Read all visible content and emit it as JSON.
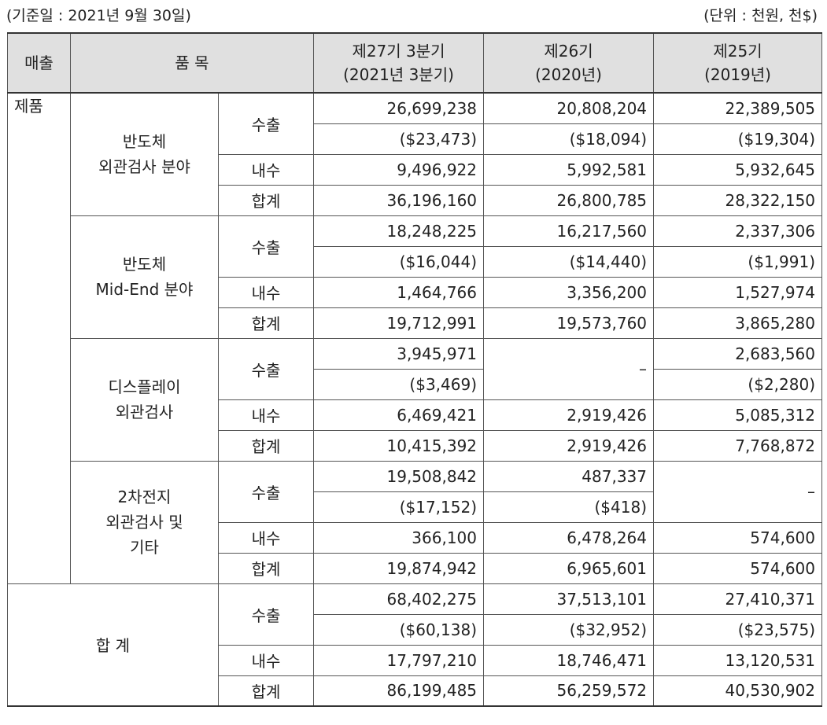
{
  "header": {
    "base_date": "(기준일 : 2021년 9월 30일)",
    "unit": "(단위 : 천원, 천$)"
  },
  "table": {
    "col_sales": "매출",
    "col_item": "품 목",
    "periods": [
      {
        "line1": "제27기 3분기",
        "line2": "(2021년 3분기)"
      },
      {
        "line1": "제26기",
        "line2": "(2020년)"
      },
      {
        "line1": "제25기",
        "line2": "(2019년)"
      }
    ],
    "segment": "제품",
    "kinds": {
      "export": "수출",
      "domestic": "내수",
      "total": "합계"
    },
    "groups": [
      {
        "name1": "반도체",
        "name2": "외관검사 분야",
        "name3": "",
        "export": [
          "26,699,238",
          "20,808,204",
          "22,389,505"
        ],
        "export_usd": [
          "($23,473)",
          "($18,094)",
          "($19,304)"
        ],
        "domestic": [
          "9,496,922",
          "5,992,581",
          "5,932,645"
        ],
        "total": [
          "36,196,160",
          "26,800,785",
          "28,322,150"
        ]
      },
      {
        "name1": "반도체",
        "name2": "Mid-End 분야",
        "name3": "",
        "export": [
          "18,248,225",
          "16,217,560",
          "2,337,306"
        ],
        "export_usd": [
          "($16,044)",
          "($14,440)",
          "($1,991)"
        ],
        "domestic": [
          "1,464,766",
          "3,356,200",
          "1,527,974"
        ],
        "total": [
          "19,712,991",
          "19,573,760",
          "3,865,280"
        ]
      },
      {
        "name1": "디스플레이",
        "name2": "외관검사",
        "name3": "",
        "export": [
          "3,945,971",
          "–",
          "2,683,560"
        ],
        "export_usd": [
          "($3,469)",
          "",
          "($2,280)"
        ],
        "domestic": [
          "6,469,421",
          "2,919,426",
          "5,085,312"
        ],
        "total": [
          "10,415,392",
          "2,919,426",
          "7,768,872"
        ]
      },
      {
        "name1": "2차전지",
        "name2": "외관검사 및",
        "name3": "기타",
        "export": [
          "19,508,842",
          "487,337",
          "–"
        ],
        "export_usd": [
          "($17,152)",
          "($418)",
          ""
        ],
        "domestic": [
          "366,100",
          "6,478,264",
          "574,600"
        ],
        "total": [
          "19,874,942",
          "6,965,601",
          "574,600"
        ]
      }
    ],
    "grand_total": {
      "label": "합 계",
      "export": [
        "68,402,275",
        "37,513,101",
        "27,410,371"
      ],
      "export_usd": [
        "($60,138)",
        "($32,952)",
        "($23,575)"
      ],
      "domestic": [
        "17,797,210",
        "18,746,471",
        "13,120,531"
      ],
      "total": [
        "86,199,485",
        "56,259,572",
        "40,530,902"
      ]
    }
  }
}
